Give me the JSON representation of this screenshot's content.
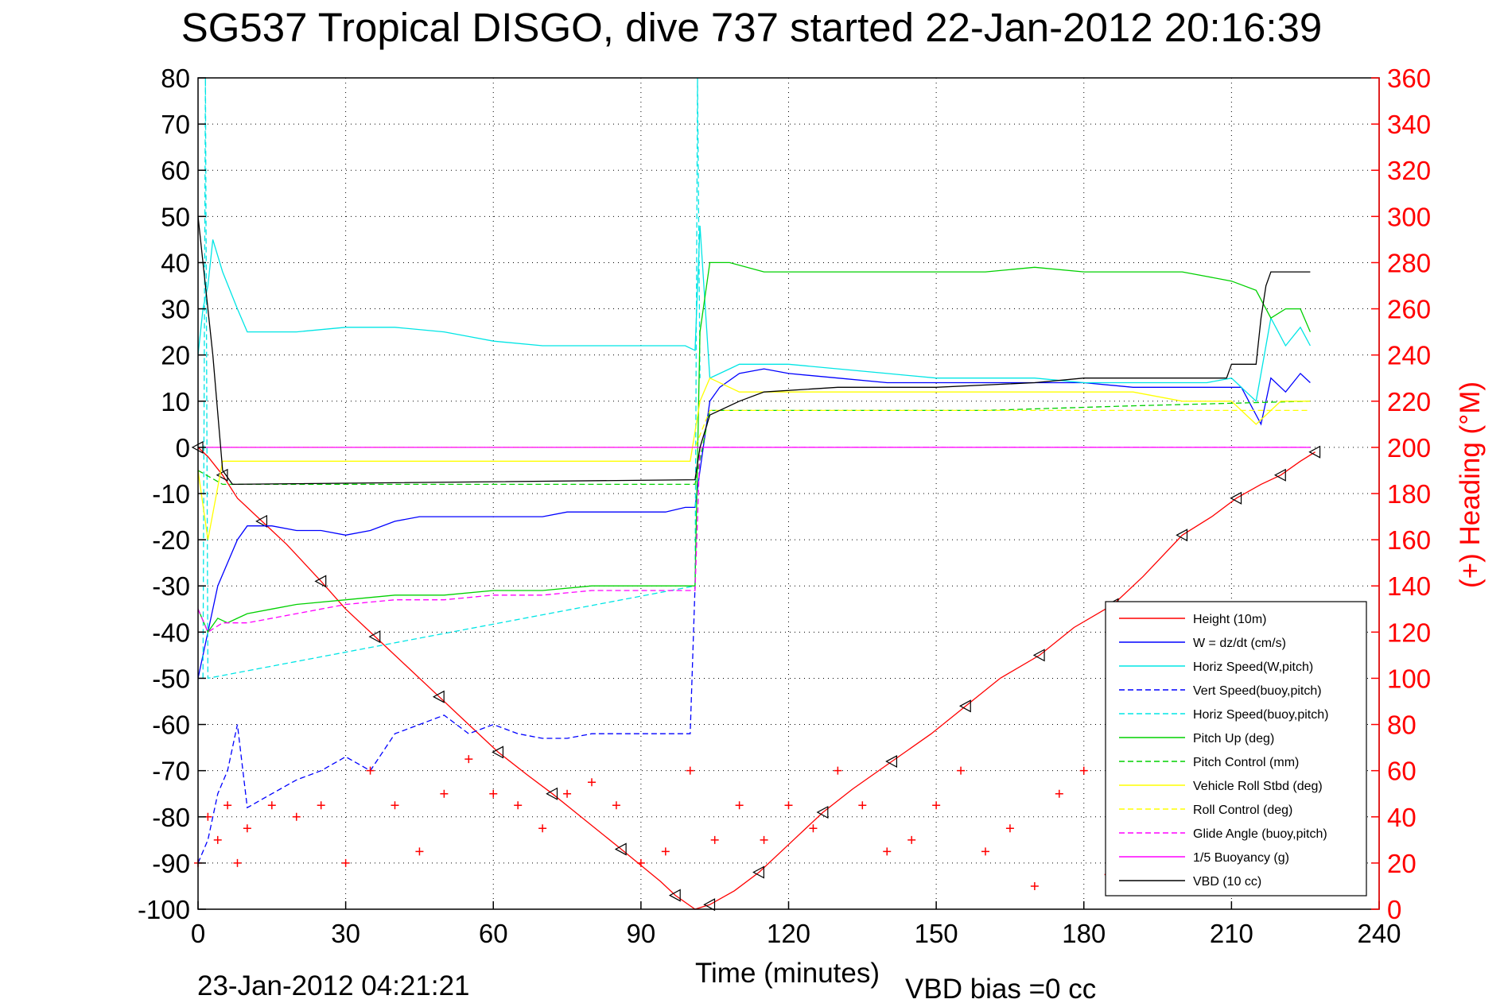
{
  "chart_data": {
    "type": "line",
    "title": "SG537 Tropical DISGO, dive 737 started 22-Jan-2012 20:16:39",
    "xlabel": "Time (minutes)",
    "ylabel": "",
    "y2label": "(+) Heading (°M)",
    "xlim": [
      0,
      240
    ],
    "ylim": [
      -100,
      80
    ],
    "y2lim": [
      0,
      360
    ],
    "xticks": [
      "0",
      "30",
      "60",
      "90",
      "120",
      "150",
      "180",
      "210",
      "240"
    ],
    "yticks": [
      "80",
      "70",
      "60",
      "50",
      "40",
      "30",
      "20",
      "10",
      "0",
      "-10",
      "-20",
      "-30",
      "-40",
      "-50",
      "-60",
      "-70",
      "-80",
      "-90",
      "-100"
    ],
    "y2ticks": [
      "360",
      "340",
      "320",
      "300",
      "280",
      "260",
      "240",
      "220",
      "200",
      "180",
      "160",
      "140",
      "120",
      "100",
      "80",
      "60",
      "40",
      "20",
      "0"
    ],
    "grid": true,
    "legend_position": "bottom-right",
    "end_time_label": "23-Jan-2012 04:21:21",
    "vbd_bias_label": "VBD bias =0 cc",
    "series": [
      {
        "name": "Height (10m)",
        "color": "#ff0000",
        "style": "solid",
        "axis": "left",
        "x": [
          0,
          2,
          5,
          8,
          13,
          18,
          25,
          30,
          36,
          42,
          49,
          55,
          61,
          67,
          72,
          79,
          86,
          94,
          97,
          101,
          104,
          109,
          114,
          121,
          127,
          133,
          141,
          149,
          156,
          163,
          171,
          178,
          186,
          192,
          200,
          206,
          211,
          216,
          220,
          224,
          227
        ],
        "y": [
          0,
          -2,
          -6,
          -11,
          -16,
          -21,
          -29,
          -35,
          -41,
          -47,
          -54,
          -60,
          -66,
          -71,
          -75,
          -81,
          -87,
          -94,
          -97,
          -100,
          -99,
          -96,
          -92,
          -85,
          -79,
          -74,
          -68,
          -62,
          -56,
          -50,
          -45,
          -39,
          -34,
          -28,
          -19,
          -15,
          -11,
          -8,
          -6,
          -3,
          -1
        ]
      },
      {
        "name": "W = dz/dt (cm/s)",
        "color": "#0000ff",
        "style": "solid",
        "axis": "left",
        "x": [
          0,
          1,
          2,
          3,
          4,
          6,
          8,
          10,
          15,
          20,
          25,
          30,
          35,
          40,
          45,
          50,
          55,
          60,
          65,
          70,
          75,
          80,
          85,
          90,
          95,
          99,
          101,
          102,
          104,
          106,
          110,
          115,
          120,
          130,
          140,
          150,
          160,
          170,
          180,
          190,
          200,
          208,
          212,
          216,
          218,
          221,
          224,
          226
        ],
        "y": [
          -50,
          -45,
          -40,
          -35,
          -30,
          -25,
          -20,
          -17,
          -17,
          -18,
          -18,
          -19,
          -18,
          -16,
          -15,
          -15,
          -15,
          -15,
          -15,
          -15,
          -14,
          -14,
          -14,
          -14,
          -14,
          -13,
          -13,
          -5,
          10,
          13,
          16,
          17,
          16,
          15,
          14,
          14,
          14,
          14,
          14,
          13,
          13,
          13,
          13,
          5,
          15,
          12,
          16,
          14
        ]
      },
      {
        "name": "Horiz Speed(W,pitch)",
        "color": "#00e5e5",
        "style": "solid",
        "axis": "left",
        "x": [
          0,
          1,
          2,
          3,
          5,
          8,
          10,
          15,
          20,
          30,
          40,
          50,
          55,
          60,
          70,
          80,
          90,
          99,
          101,
          102,
          104,
          108,
          110,
          115,
          120,
          130,
          140,
          150,
          160,
          170,
          180,
          190,
          200,
          205,
          210,
          215,
          218,
          221,
          224,
          226
        ],
        "y": [
          20,
          30,
          35,
          45,
          38,
          30,
          25,
          25,
          25,
          26,
          26,
          25,
          24,
          23,
          22,
          22,
          22,
          22,
          21,
          48,
          15,
          17,
          18,
          18,
          18,
          17,
          16,
          15,
          15,
          15,
          14,
          14,
          14,
          14,
          15,
          10,
          28,
          22,
          26,
          22
        ]
      },
      {
        "name": "Vert Speed(buoy,pitch)",
        "color": "#0000ff",
        "style": "dashed",
        "axis": "left",
        "x": [
          0,
          2,
          4,
          6,
          8,
          10,
          15,
          20,
          25,
          30,
          35,
          40,
          45,
          50,
          55,
          60,
          65,
          70,
          75,
          80,
          85,
          90,
          95,
          100,
          101
        ],
        "y": [
          -90,
          -85,
          -75,
          -70,
          -60,
          -78,
          -75,
          -72,
          -70,
          -67,
          -70,
          -62,
          -60,
          -58,
          -62,
          -60,
          -62,
          -63,
          -63,
          -62,
          -62,
          -62,
          -62,
          -62,
          -30
        ]
      },
      {
        "name": "Horiz Speed(buoy,pitch)",
        "color": "#00e5e5",
        "style": "dashed",
        "axis": "left",
        "x": [
          1,
          1.5,
          2,
          101,
          101.5,
          102
        ],
        "y": [
          -50,
          80,
          -50,
          -30,
          80,
          15
        ]
      },
      {
        "name": "Pitch Up (deg)",
        "color": "#00d000",
        "style": "solid",
        "axis": "left",
        "x": [
          0,
          2,
          4,
          6,
          8,
          10,
          15,
          20,
          30,
          40,
          50,
          60,
          70,
          80,
          90,
          95,
          99,
          101,
          102,
          104,
          108,
          115,
          120,
          130,
          140,
          150,
          160,
          170,
          180,
          190,
          200,
          205,
          210,
          215,
          218,
          221,
          224,
          226
        ],
        "y": [
          -35,
          -40,
          -37,
          -38,
          -37,
          -36,
          -35,
          -34,
          -33,
          -32,
          -32,
          -31,
          -31,
          -30,
          -30,
          -30,
          -30,
          -30,
          25,
          40,
          40,
          38,
          38,
          38,
          38,
          38,
          38,
          39,
          38,
          38,
          38,
          37,
          36,
          34,
          28,
          30,
          30,
          25
        ]
      },
      {
        "name": "Pitch Control (mm)",
        "color": "#00d000",
        "style": "dashed",
        "axis": "left",
        "x": [
          0,
          5,
          10,
          50,
          101,
          104,
          130,
          160,
          190,
          226
        ],
        "y": [
          -5,
          -8,
          -8,
          -8,
          -8,
          8,
          8,
          8,
          9,
          10
        ]
      },
      {
        "name": "Vehicle Roll Stbd (deg)",
        "color": "#ffff00",
        "style": "solid",
        "axis": "left",
        "x": [
          0,
          2,
          5,
          10,
          20,
          30,
          40,
          50,
          60,
          70,
          80,
          90,
          100,
          102,
          104,
          110,
          120,
          130,
          140,
          150,
          160,
          170,
          180,
          190,
          200,
          210,
          215,
          220,
          226
        ],
        "y": [
          -5,
          -20,
          -3,
          -3,
          -3,
          -3,
          -3,
          -3,
          -3,
          -3,
          -3,
          -3,
          -3,
          10,
          15,
          12,
          12,
          12,
          12,
          12,
          12,
          12,
          12,
          12,
          10,
          10,
          5,
          10,
          10
        ]
      },
      {
        "name": "Roll Control (deg)",
        "color": "#ffff00",
        "style": "dashed",
        "axis": "left",
        "x": [
          0,
          10,
          50,
          101,
          104,
          150,
          190,
          210,
          226
        ],
        "y": [
          0,
          0,
          0,
          0,
          8,
          8,
          8,
          8,
          8
        ]
      },
      {
        "name": "Glide Angle (buoy,pitch)",
        "color": "#ff00ff",
        "style": "dashed",
        "axis": "left",
        "x": [
          0,
          2,
          5,
          10,
          20,
          30,
          40,
          50,
          60,
          70,
          80,
          90,
          99,
          101,
          102,
          110,
          150,
          200,
          226
        ],
        "y": [
          -35,
          -40,
          -38,
          -38,
          -36,
          -34,
          -33,
          -33,
          -32,
          -32,
          -31,
          -31,
          -31,
          -31,
          0,
          0,
          0,
          0,
          0
        ]
      },
      {
        "name": "1/5 Buoyancy (g)",
        "color": "#ff00ff",
        "style": "solid",
        "axis": "left",
        "x": [
          0,
          101,
          101.5,
          226
        ],
        "y": [
          0,
          0,
          0,
          0
        ]
      },
      {
        "name": "VBD (10 cc)",
        "color": "#000000",
        "style": "solid",
        "axis": "left",
        "x": [
          0,
          1,
          3,
          5,
          7,
          101,
          102,
          104,
          110,
          115,
          130,
          150,
          170,
          180,
          200,
          209,
          210,
          215,
          216,
          217,
          218,
          226
        ],
        "y": [
          50,
          40,
          20,
          -5,
          -8,
          -7,
          0,
          7,
          10,
          12,
          13,
          13,
          14,
          15,
          15,
          15,
          18,
          18,
          28,
          35,
          38,
          38
        ]
      },
      {
        "name": "Heading",
        "color": "#ff0000",
        "style": "marker-plus",
        "axis": "right",
        "x": [
          0,
          2,
          4,
          6,
          8,
          10,
          15,
          20,
          25,
          30,
          35,
          40,
          45,
          50,
          55,
          60,
          65,
          70,
          75,
          80,
          85,
          90,
          95,
          100,
          105,
          110,
          115,
          120,
          125,
          130,
          135,
          140,
          145,
          150,
          155,
          160,
          165,
          170,
          175,
          180,
          185,
          190,
          195,
          200,
          205,
          210,
          215,
          220,
          225
        ],
        "y": [
          20,
          40,
          30,
          45,
          20,
          35,
          45,
          40,
          45,
          20,
          60,
          45,
          25,
          50,
          65,
          50,
          45,
          35,
          50,
          55,
          45,
          20,
          25,
          60,
          30,
          45,
          30,
          45,
          35,
          60,
          45,
          25,
          30,
          45,
          60,
          25,
          35,
          10,
          50,
          60,
          15,
          10,
          45,
          40,
          10,
          30,
          40,
          20,
          15
        ]
      }
    ]
  },
  "legend": [
    {
      "label": "Height (10m)",
      "color": "#ff0000",
      "style": "solid"
    },
    {
      "label": "W = dz/dt (cm/s)",
      "color": "#0000ff",
      "style": "solid"
    },
    {
      "label": "Horiz Speed(W,pitch)",
      "color": "#00e5e5",
      "style": "solid"
    },
    {
      "label": "Vert Speed(buoy,pitch)",
      "color": "#0000ff",
      "style": "dashed"
    },
    {
      "label": "Horiz Speed(buoy,pitch)",
      "color": "#00e5e5",
      "style": "dashed"
    },
    {
      "label": "Pitch Up (deg)",
      "color": "#00d000",
      "style": "solid"
    },
    {
      "label": "Pitch Control (mm)",
      "color": "#00d000",
      "style": "dashed"
    },
    {
      "label": "Vehicle Roll Stbd (deg)",
      "color": "#ffff00",
      "style": "solid"
    },
    {
      "label": "Roll Control (deg)",
      "color": "#ffff00",
      "style": "dashed"
    },
    {
      "label": "Glide Angle (buoy,pitch)",
      "color": "#ff00ff",
      "style": "dashed"
    },
    {
      "label": "1/5 Buoyancy (g)",
      "color": "#ff00ff",
      "style": "solid"
    },
    {
      "label": "VBD (10 cc)",
      "color": "#000000",
      "style": "solid"
    }
  ]
}
